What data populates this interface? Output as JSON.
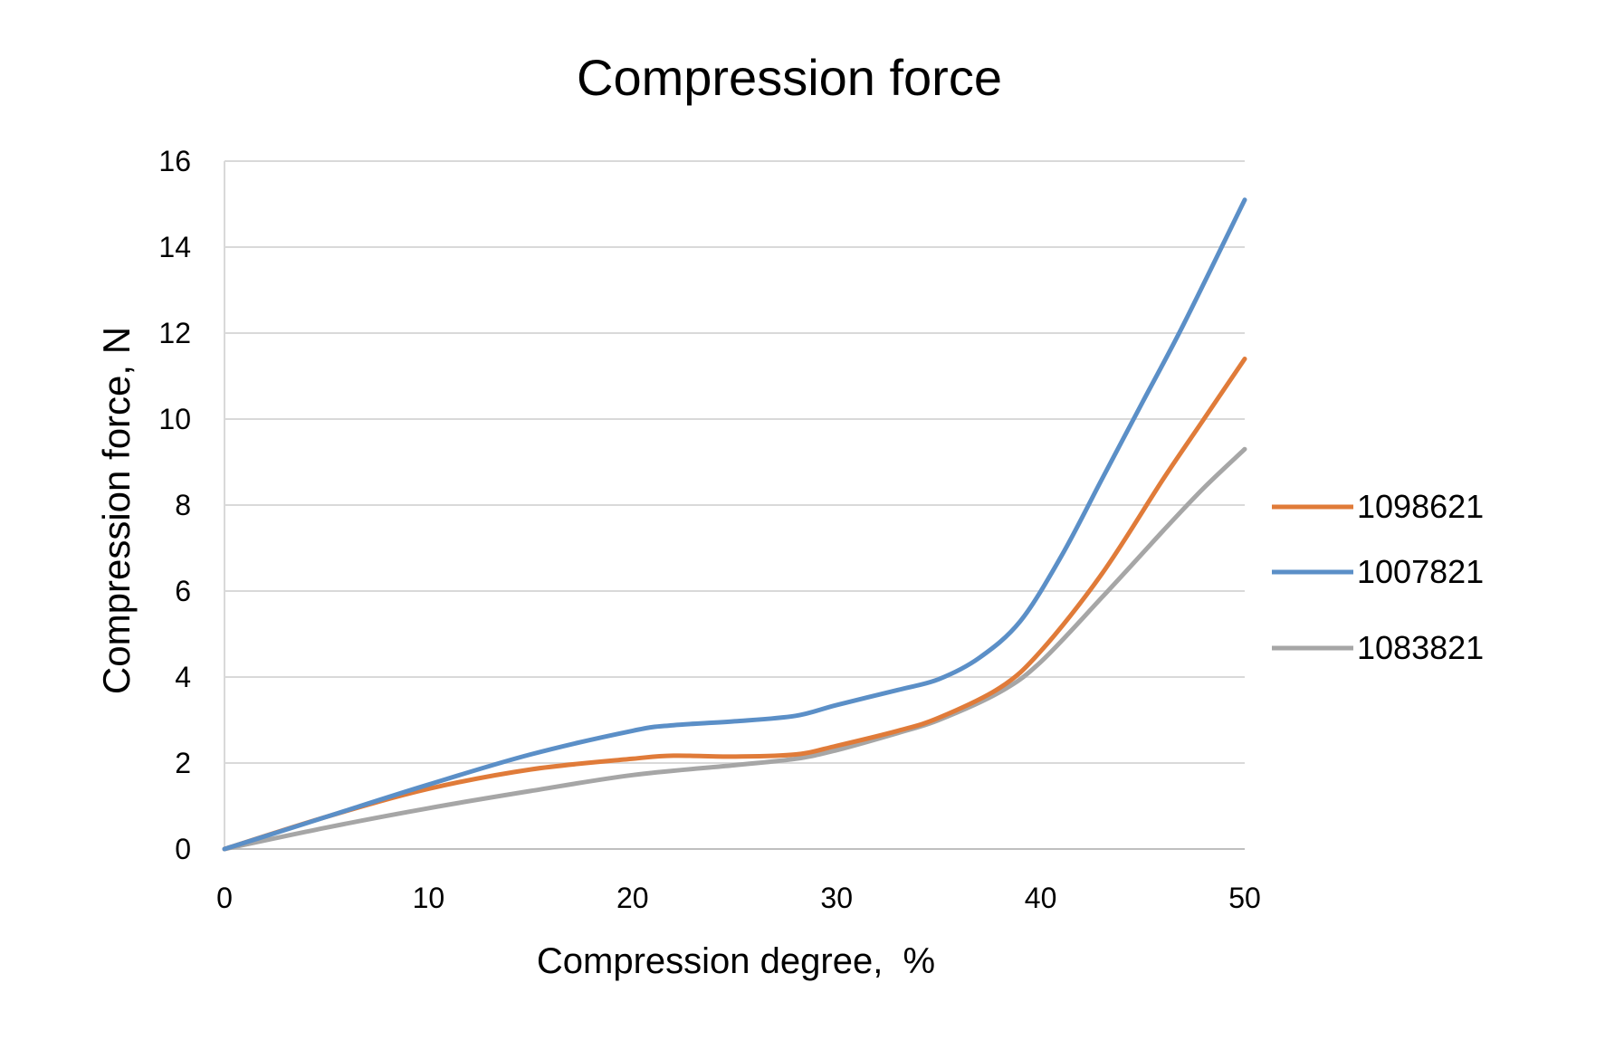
{
  "chart_data": {
    "type": "line",
    "title": "Compression force",
    "xlabel": "Compression degree,  %",
    "ylabel": "Compression force, N",
    "xlim": [
      0,
      50
    ],
    "ylim": [
      0,
      16
    ],
    "x_ticks": [
      0,
      10,
      20,
      30,
      40,
      50
    ],
    "y_ticks": [
      0,
      2,
      4,
      6,
      8,
      10,
      12,
      14,
      16
    ],
    "grid": "horizontal",
    "legend": "right",
    "series": [
      {
        "name": "1098621",
        "color": "#E07B39",
        "x": [
          0,
          5,
          10,
          15,
          20,
          22,
          25,
          28,
          30,
          33,
          35,
          38,
          40,
          43,
          46,
          48,
          50
        ],
        "y": [
          0,
          0.75,
          1.4,
          1.85,
          2.1,
          2.17,
          2.15,
          2.2,
          2.4,
          2.75,
          3.05,
          3.75,
          4.6,
          6.4,
          8.6,
          10.0,
          11.4
        ]
      },
      {
        "name": "1007821",
        "color": "#5B8FC7",
        "x": [
          0,
          5,
          10,
          15,
          20,
          22,
          25,
          28,
          30,
          33,
          35,
          37,
          39,
          41,
          43,
          45,
          47,
          50
        ],
        "y": [
          0,
          0.75,
          1.5,
          2.2,
          2.75,
          2.88,
          2.97,
          3.1,
          3.35,
          3.7,
          3.95,
          4.45,
          5.3,
          6.8,
          8.6,
          10.4,
          12.2,
          15.1
        ]
      },
      {
        "name": "1083821",
        "color": "#A6A6A6",
        "x": [
          0,
          5,
          10,
          15,
          20,
          25,
          28,
          30,
          33,
          35,
          38,
          40,
          43,
          46,
          48,
          50
        ],
        "y": [
          0,
          0.5,
          0.95,
          1.35,
          1.72,
          1.95,
          2.1,
          2.3,
          2.7,
          3.0,
          3.65,
          4.35,
          5.85,
          7.4,
          8.4,
          9.3
        ]
      }
    ]
  }
}
